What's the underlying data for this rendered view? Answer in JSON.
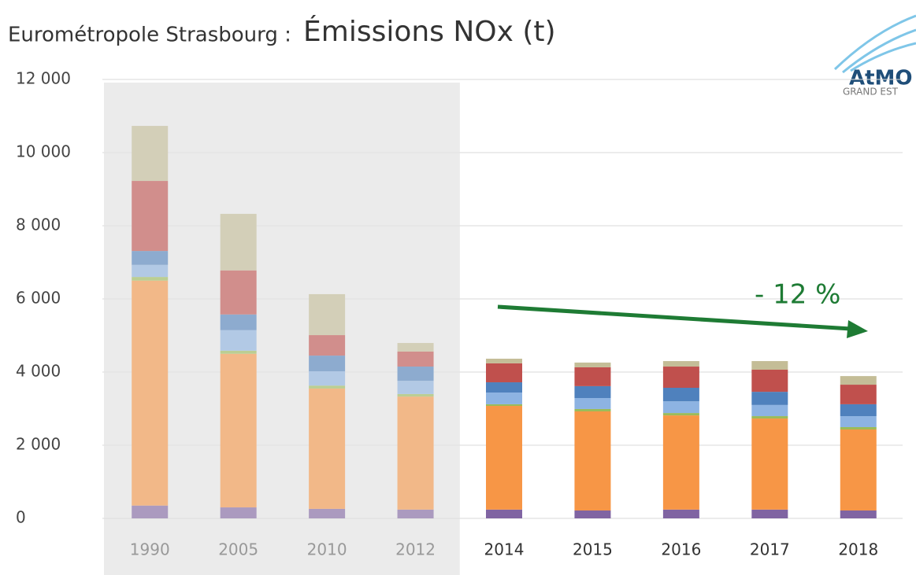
{
  "chart_data": {
    "type": "bar",
    "stacked": true,
    "title_prefix": "Eurométropole Strasbourg :",
    "title": "Émissions NOx (t)",
    "logo": {
      "name": "AtMO",
      "subtitle": "GRAND EST"
    },
    "annotation": "- 12 %",
    "annotation_color": "#1e7b34",
    "categories": [
      "1990",
      "2005",
      "2010",
      "2012",
      "2014",
      "2015",
      "2016",
      "2017",
      "2018"
    ],
    "shade_range": [
      0,
      3
    ],
    "series": [
      {
        "color": "#8064a2",
        "values": [
          350,
          300,
          260,
          240,
          240,
          215,
          240,
          240,
          215
        ]
      },
      {
        "color": "#f79646",
        "values": [
          6150,
          4200,
          3290,
          3090,
          2835,
          2710,
          2575,
          2490,
          2215
        ]
      },
      {
        "color": "#9bbb59",
        "values": [
          100,
          85,
          80,
          70,
          45,
          65,
          65,
          65,
          65
        ]
      },
      {
        "color": "#8db3e2",
        "values": [
          330,
          560,
          390,
          360,
          320,
          300,
          320,
          305,
          300
        ]
      },
      {
        "color": "#4f81bd",
        "values": [
          380,
          430,
          430,
          390,
          280,
          325,
          370,
          360,
          325
        ]
      },
      {
        "color": "#c0504d",
        "values": [
          1915,
          1205,
          560,
          410,
          520,
          515,
          580,
          605,
          535
        ]
      },
      {
        "color": "#c4bd97",
        "values": [
          1505,
          1545,
          1120,
          235,
          125,
          130,
          150,
          235,
          235
        ]
      }
    ],
    "ylim": [
      0,
      12000
    ],
    "yticks": [
      0,
      {
        "value": 2000,
        "label": "2 000"
      },
      {
        "value": 4000,
        "label": "4 000"
      },
      {
        "value": 6000,
        "label": "6 000"
      },
      {
        "value": 8000,
        "label": "8 000"
      },
      {
        "value": 10000,
        "label": "10 000"
      },
      {
        "value": 12000,
        "label": "12 000"
      }
    ],
    "grid": true
  }
}
